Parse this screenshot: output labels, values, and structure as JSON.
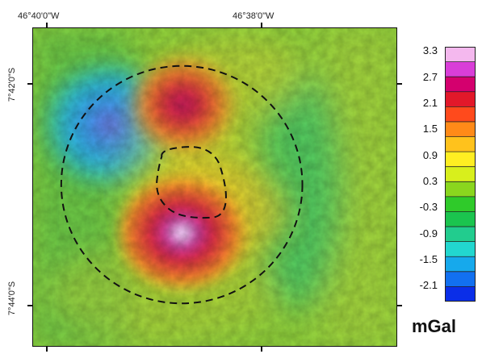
{
  "map": {
    "lon_labels": [
      "46°40'0\"W",
      "46°38'0\"W"
    ],
    "lat_labels": [
      "7°42'0\"S",
      "7°44'0\"S"
    ]
  },
  "legend": {
    "unit": "mGal",
    "labels": [
      "3.3",
      "2.7",
      "2.1",
      "1.5",
      "0.9",
      "0.3",
      "-0.3",
      "-0.9",
      "-1.5",
      "-2.1"
    ],
    "colors": [
      "#f4b8ee",
      "#d93ed8",
      "#d4006e",
      "#e2182a",
      "#ff4a1c",
      "#ff8a18",
      "#ffc21c",
      "#ffee22",
      "#d8ef1c",
      "#8ad61e",
      "#2fca2a",
      "#1bc44e",
      "#22cc8e",
      "#22d7cf",
      "#16a9ec",
      "#1270f0",
      "#0a2ee8"
    ]
  }
}
